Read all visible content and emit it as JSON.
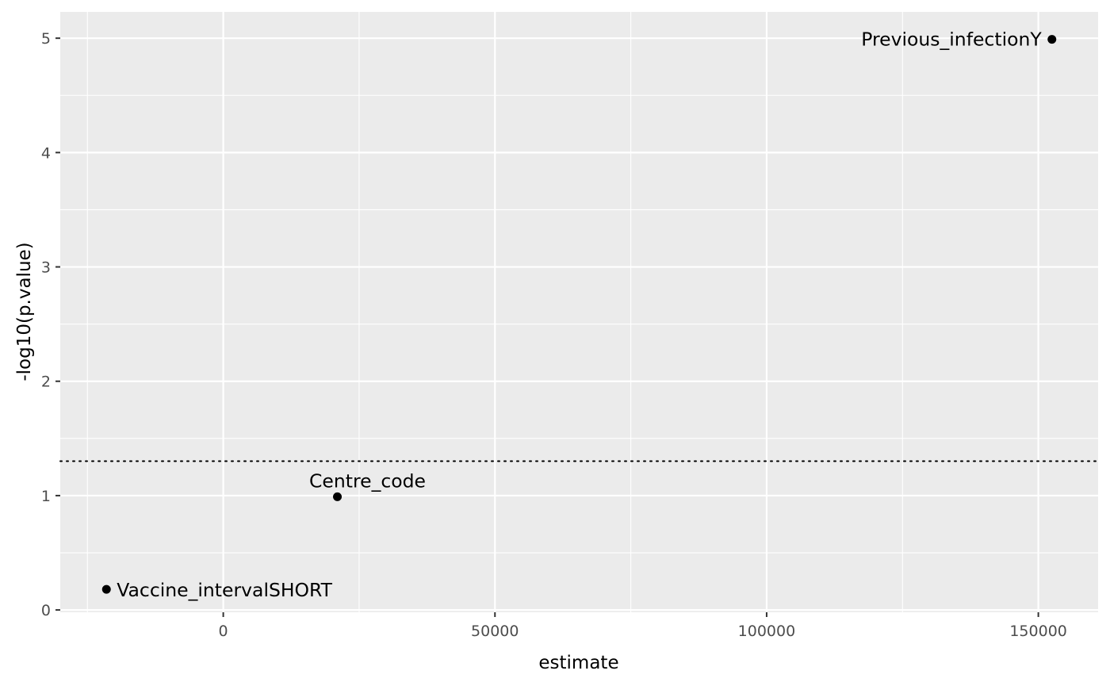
{
  "chart_data": {
    "type": "scatter",
    "xlabel": "estimate",
    "ylabel": "-log10(p.value)",
    "xlim": [
      -30000,
      161000
    ],
    "ylim": [
      -0.02,
      5.23
    ],
    "x_ticks": [
      0,
      50000,
      100000,
      150000
    ],
    "x_minor_ticks": [
      -25000,
      25000,
      75000,
      125000
    ],
    "y_ticks": [
      0,
      1,
      2,
      3,
      4,
      5
    ],
    "y_minor_ticks": [
      0.5,
      1.5,
      2.5,
      3.5,
      4.5
    ],
    "threshold_line": {
      "y": 1.301,
      "style": "dotted"
    },
    "grid": true,
    "points": [
      {
        "label": "Previous_infectionY",
        "x": 152500,
        "y": 4.99,
        "label_side": "left"
      },
      {
        "label": "Centre_code",
        "x": 21000,
        "y": 0.99,
        "label_side": "above"
      },
      {
        "label": "Vaccine_intervalSHORT",
        "x": -21500,
        "y": 0.18,
        "label_side": "right"
      }
    ],
    "colors": {
      "panel_background": "#ebebeb",
      "grid_major": "#ffffff",
      "point": "#000000",
      "tick_text": "#4d4d4d",
      "tick_mark": "#333333"
    }
  }
}
